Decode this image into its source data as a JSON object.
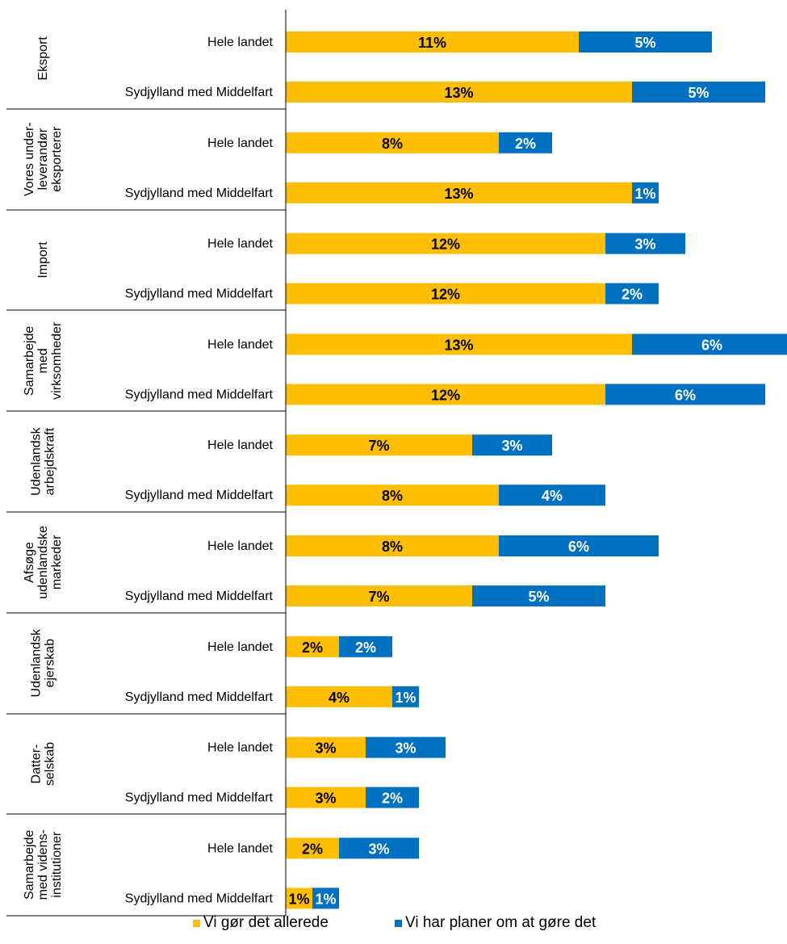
{
  "chart_data": {
    "type": "bar",
    "orientation": "horizontal",
    "stacked": true,
    "value_format": "percent",
    "colors": {
      "series0": "#FFBF00",
      "series1": "#0070C0",
      "label_on_yellow": "#000000",
      "label_on_blue": "#ffffff"
    },
    "groups": [
      {
        "label": [
          "Eksport"
        ]
      },
      {
        "label": [
          "Vores under-",
          "leverandør",
          "eksporterer"
        ]
      },
      {
        "label": [
          "Import"
        ]
      },
      {
        "label": [
          "Samarbejde",
          "med",
          "virksomheder"
        ]
      },
      {
        "label": [
          "Udenlandsk",
          "arbejdskraft"
        ]
      },
      {
        "label": [
          "Afsøge",
          "udenlandske",
          "markeder"
        ]
      },
      {
        "label": [
          "Udenlandsk",
          "ejerskab"
        ]
      },
      {
        "label": [
          "Datter-",
          "selskab"
        ]
      },
      {
        "label": [
          "Samarbejde",
          "med videns-",
          "institutioner"
        ]
      }
    ],
    "row_labels": [
      "Hele landet",
      "Sydjylland med Middelfart"
    ],
    "series": [
      {
        "name": "Vi gør det allerede",
        "values": [
          11,
          13,
          8,
          13,
          12,
          12,
          13,
          12,
          7,
          8,
          8,
          7,
          2,
          4,
          3,
          3,
          2,
          1
        ]
      },
      {
        "name": "Vi har planer om at gøre det",
        "values": [
          5,
          5,
          2,
          1,
          3,
          2,
          6,
          6,
          3,
          4,
          6,
          5,
          2,
          1,
          3,
          2,
          3,
          1
        ]
      }
    ],
    "xlim": [
      0,
      19
    ],
    "grid": false,
    "legend_position": "bottom"
  }
}
